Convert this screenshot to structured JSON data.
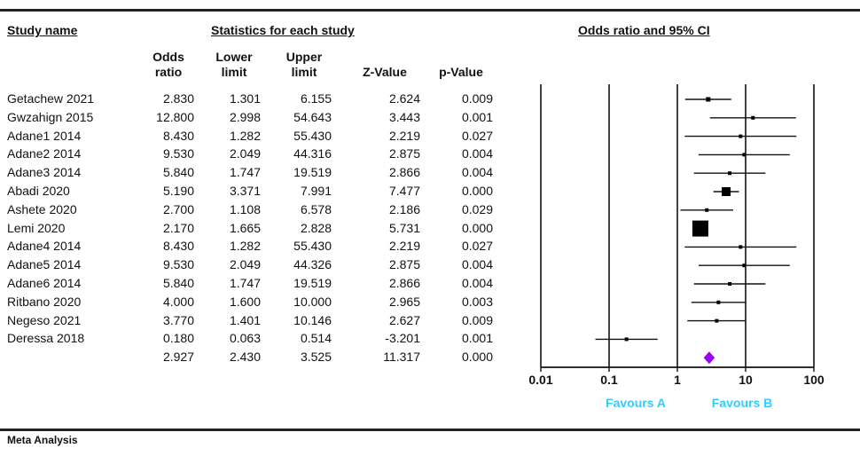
{
  "chart_data": {
    "type": "forest",
    "title": "Odds ratio and 95% CI",
    "section_headers": {
      "study_name": "Study name",
      "statistics": "Statistics for each study"
    },
    "columns": {
      "odds_ratio": "Odds ratio",
      "lower_limit": "Lower limit",
      "upper_limit": "Upper limit",
      "z_value": "Z-Value",
      "p_value": "p-Value"
    },
    "x_scale": "log",
    "x_ticks": [
      0.01,
      0.1,
      1,
      10,
      100
    ],
    "x_tick_labels": [
      "0.01",
      "0.1",
      "1",
      "10",
      "100"
    ],
    "favours_a": "Favours A",
    "favours_b": "Favours B",
    "favours_color": "#33ccff",
    "summary_color": "#9900ff",
    "studies": [
      {
        "name": "Getachew 2021",
        "or": "2.830",
        "lower": "1.301",
        "upper": "6.155",
        "z": "2.624",
        "p": "0.009",
        "w": 1.0
      },
      {
        "name": "Gwzahign 2015",
        "or": "12.800",
        "lower": "2.998",
        "upper": "54.643",
        "z": "3.443",
        "p": "0.001",
        "w": 0.8
      },
      {
        "name": "Adane1 2014",
        "or": "8.430",
        "lower": "1.282",
        "upper": "55.430",
        "z": "2.219",
        "p": "0.027",
        "w": 0.8
      },
      {
        "name": "Adane2 2014",
        "or": "9.530",
        "lower": "2.049",
        "upper": "44.316",
        "z": "2.875",
        "p": "0.004",
        "w": 0.8
      },
      {
        "name": "Adane3 2014",
        "or": "5.840",
        "lower": "1.747",
        "upper": "19.519",
        "z": "2.866",
        "p": "0.004",
        "w": 0.8
      },
      {
        "name": "Abadi 2020",
        "or": "5.190",
        "lower": "3.371",
        "upper": "7.991",
        "z": "7.477",
        "p": "0.000",
        "w": 2.0
      },
      {
        "name": "Ashete 2020",
        "or": "2.700",
        "lower": "1.108",
        "upper": "6.578",
        "z": "2.186",
        "p": "0.029",
        "w": 0.8
      },
      {
        "name": "Lemi 2020",
        "or": "2.170",
        "lower": "1.665",
        "upper": "2.828",
        "z": "5.731",
        "p": "0.000",
        "w": 3.6
      },
      {
        "name": "Adane4 2014",
        "or": "8.430",
        "lower": "1.282",
        "upper": "55.430",
        "z": "2.219",
        "p": "0.027",
        "w": 0.8
      },
      {
        "name": "Adane5 2014",
        "or": "9.530",
        "lower": "2.049",
        "upper": "44.326",
        "z": "2.875",
        "p": "0.004",
        "w": 0.8
      },
      {
        "name": "Adane6 2014",
        "or": "5.840",
        "lower": "1.747",
        "upper": "19.519",
        "z": "2.866",
        "p": "0.004",
        "w": 0.8
      },
      {
        "name": "Ritbano 2020",
        "or": "4.000",
        "lower": "1.600",
        "upper": "10.000",
        "z": "2.965",
        "p": "0.003",
        "w": 0.8
      },
      {
        "name": "Negeso 2021",
        "or": "3.770",
        "lower": "1.401",
        "upper": "10.146",
        "z": "2.627",
        "p": "0.009",
        "w": 0.8
      },
      {
        "name": "Deressa 2018",
        "or": "0.180",
        "lower": "0.063",
        "upper": "0.514",
        "z": "-3.201",
        "p": "0.001",
        "w": 0.8
      }
    ],
    "summary": {
      "or": "2.927",
      "lower": "2.430",
      "upper": "3.525",
      "z": "11.317",
      "p": "0.000"
    }
  },
  "footer": "Meta Analysis"
}
